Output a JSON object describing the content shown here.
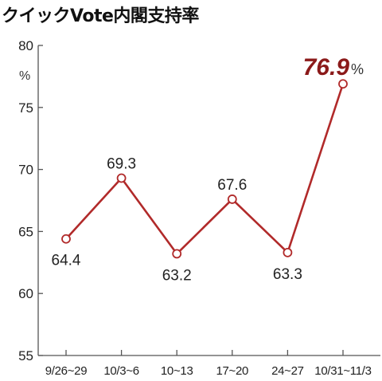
{
  "title": "クイックVote内閣支持率",
  "chart_data": {
    "type": "line",
    "title": "クイックVote内閣支持率",
    "ylabel": "%",
    "xlabel": "",
    "ylim": [
      55,
      80
    ],
    "yticks": [
      55,
      60,
      65,
      70,
      75,
      80
    ],
    "categories": [
      "9/26~29",
      "10/3~6",
      "10~13",
      "17~20",
      "24~27",
      "10/31~11/3"
    ],
    "series": [
      {
        "values": [
          64.4,
          69.3,
          63.2,
          67.6,
          63.3,
          76.9
        ]
      }
    ],
    "data_labels": [
      "64.4",
      "69.3",
      "63.2",
      "67.6",
      "63.3",
      "76.9"
    ],
    "highlight": {
      "index": 5,
      "text": "76.9",
      "unit": "%"
    },
    "grid": false,
    "colors": {
      "line": "#b12a2a",
      "highlight": "#8b1a1a",
      "axis": "#555555"
    }
  }
}
